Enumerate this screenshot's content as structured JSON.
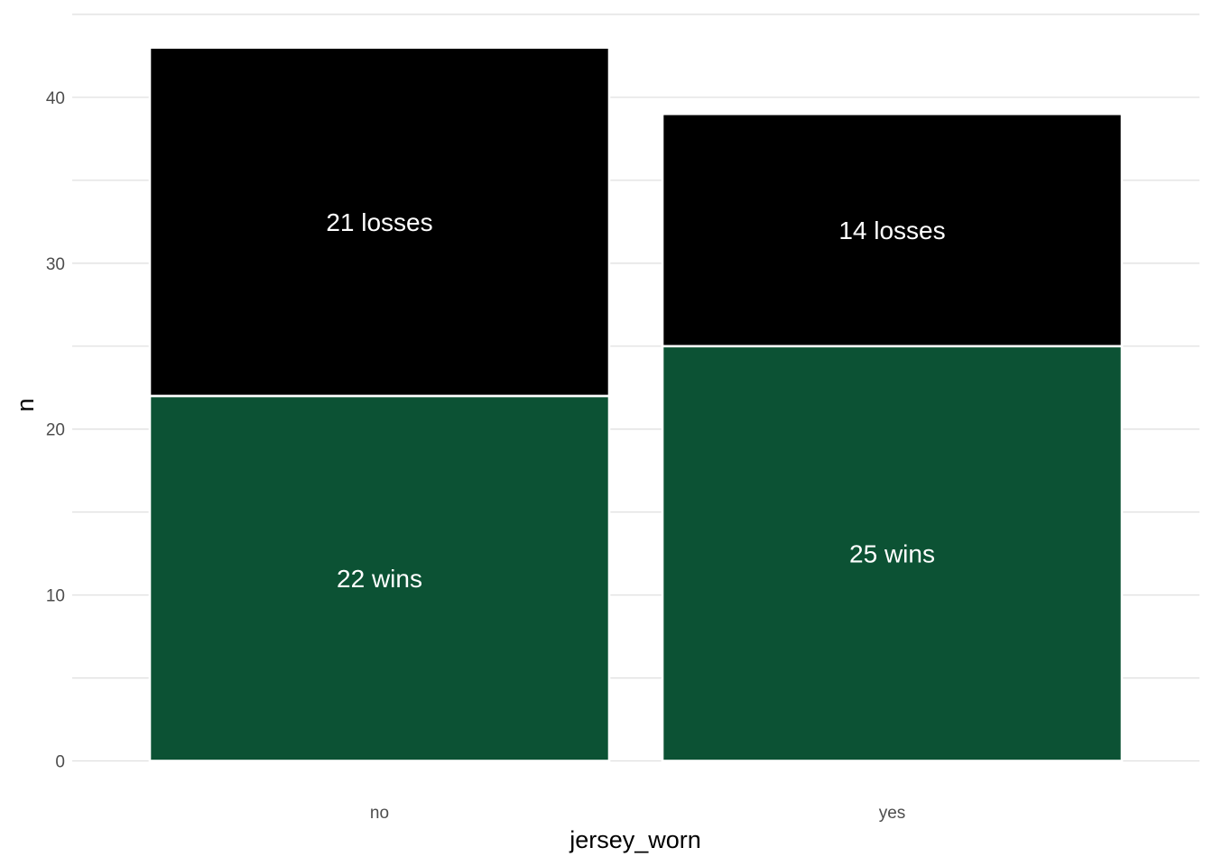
{
  "chart_data": {
    "type": "bar",
    "stacked": true,
    "categories": [
      "no",
      "yes"
    ],
    "series": [
      {
        "key": "wins",
        "color": "#0c5234",
        "values": [
          22,
          25
        ],
        "labels": [
          "22 wins",
          "25 wins"
        ]
      },
      {
        "key": "losses",
        "color": "#000000",
        "values": [
          21,
          14
        ],
        "labels": [
          "21 losses",
          "14 losses"
        ]
      }
    ],
    "xlabel": "jersey_worn",
    "ylabel": "n",
    "ylim": [
      0,
      43
    ],
    "y_ticks": [
      0,
      10,
      20,
      30,
      40
    ],
    "y_tick_labels": [
      "0",
      "10",
      "20",
      "30",
      "40"
    ],
    "grid": true,
    "legend": "none"
  }
}
